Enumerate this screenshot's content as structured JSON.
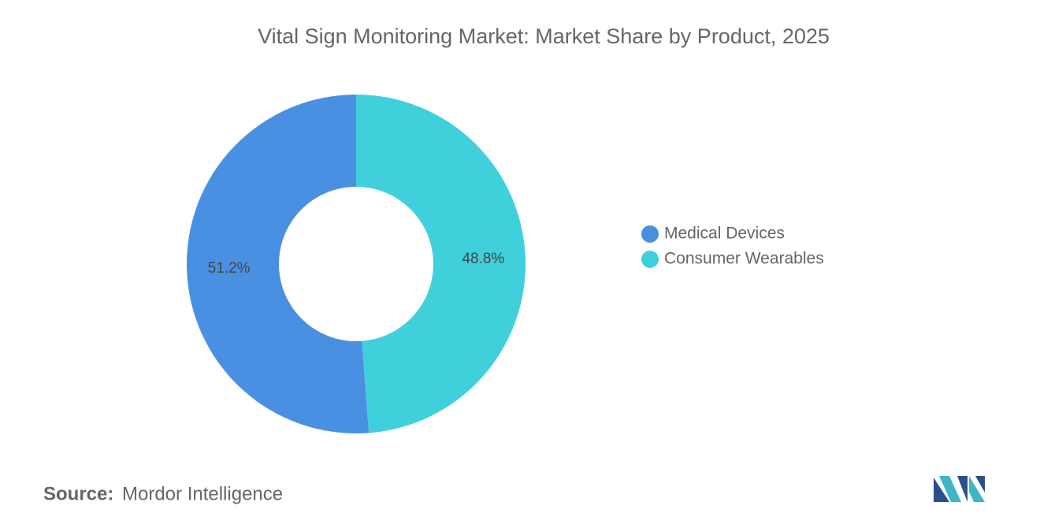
{
  "chart_data": {
    "type": "donut",
    "title": "Vital Sign Monitoring Market: Market Share by Product, 2025",
    "categories": [
      "Medical Devices",
      "Consumer Wearables"
    ],
    "values": [
      51.2,
      48.8
    ],
    "value_labels": [
      "51.2%",
      "48.8%"
    ],
    "colors": [
      "#4a90e2",
      "#40d0db"
    ],
    "legend": "right"
  },
  "source": {
    "label": "Source:",
    "text": "Mordor Intelligence"
  }
}
